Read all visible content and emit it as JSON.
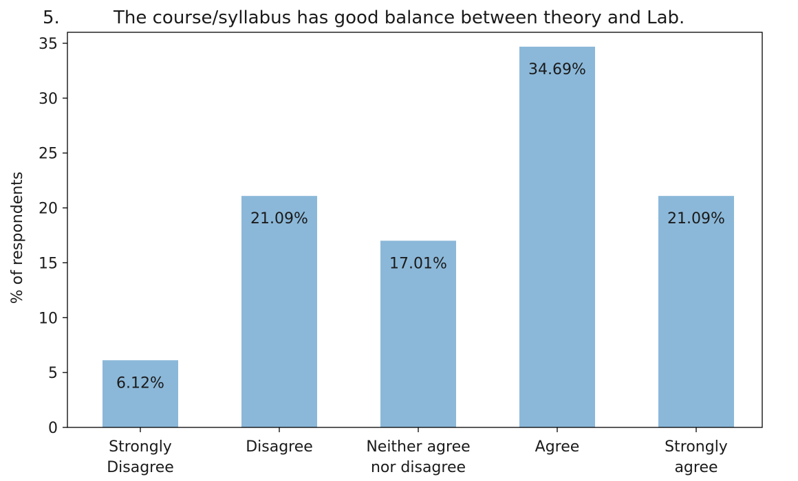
{
  "chart_data": {
    "type": "bar",
    "title_number": "5.",
    "title": "The course/syllabus has good balance between theory and Lab.",
    "ylabel": "% of respondents",
    "xlabel": "",
    "ylim": [
      0,
      36
    ],
    "yticks": [
      0,
      5,
      10,
      15,
      20,
      25,
      30,
      35
    ],
    "grid": false,
    "categories": [
      [
        "Strongly",
        "Disagree"
      ],
      [
        "Disagree"
      ],
      [
        "Neither agree",
        "nor disagree"
      ],
      [
        "Agree"
      ],
      [
        "Strongly",
        "agree"
      ]
    ],
    "values": [
      6.12,
      21.09,
      17.01,
      34.69,
      21.09
    ],
    "data_labels": [
      "6.12%",
      "21.09%",
      "17.01%",
      "34.69%",
      "21.09%"
    ],
    "bar_color": "#8bb8d9",
    "text_color": "#1a1a1a",
    "axis_color": "#000000"
  }
}
